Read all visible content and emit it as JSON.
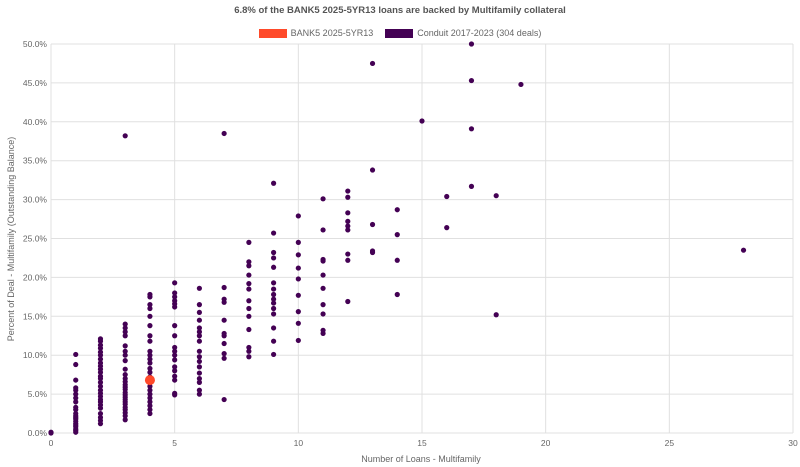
{
  "chart_data": {
    "type": "scatter",
    "title": "6.8% of the BANK5 2025-5YR13 loans are backed by Multifamily collateral",
    "xlabel": "Number of Loans - Multifamily",
    "ylabel": "Percent of Deal - Multifamily (Outstanding Balance)",
    "xlim": [
      0,
      30
    ],
    "ylim": [
      0,
      50
    ],
    "x_ticks": [
      "0",
      "5",
      "10",
      "15",
      "20",
      "25",
      "30"
    ],
    "y_ticks": [
      "0.0%",
      "5.0%",
      "10.0%",
      "15.0%",
      "20.0%",
      "25.0%",
      "30.0%",
      "35.0%",
      "40.0%",
      "45.0%",
      "50.0%"
    ],
    "grid": true,
    "legend_position": "top-center",
    "series": [
      {
        "name": "BANK5 2025-5YR13",
        "color": "#ff4a2a",
        "points": [
          [
            4,
            6.8
          ]
        ]
      },
      {
        "name": "Conduit 2017-2023 (304 deals)",
        "color": "#440154",
        "points": [
          [
            0,
            0
          ],
          [
            0,
            0.1
          ],
          [
            1,
            0.1
          ],
          [
            1,
            0.3
          ],
          [
            1,
            0.5
          ],
          [
            1,
            0.8
          ],
          [
            1,
            1.0
          ],
          [
            1,
            1.2
          ],
          [
            1,
            1.5
          ],
          [
            1,
            1.8
          ],
          [
            1,
            2.0
          ],
          [
            1,
            2.2
          ],
          [
            1,
            2.5
          ],
          [
            1,
            3.0
          ],
          [
            1,
            3.3
          ],
          [
            1,
            4.0
          ],
          [
            1,
            4.5
          ],
          [
            1,
            5.0
          ],
          [
            1,
            5.5
          ],
          [
            1,
            5.8
          ],
          [
            1,
            6.8
          ],
          [
            1,
            8.8
          ],
          [
            1,
            10.1
          ],
          [
            2,
            1.2
          ],
          [
            2,
            1.6
          ],
          [
            2,
            2.0
          ],
          [
            2,
            2.5
          ],
          [
            2,
            3.2
          ],
          [
            2,
            3.6
          ],
          [
            2,
            4.0
          ],
          [
            2,
            4.3
          ],
          [
            2,
            4.7
          ],
          [
            2,
            5.1
          ],
          [
            2,
            5.5
          ],
          [
            2,
            6.0
          ],
          [
            2,
            6.5
          ],
          [
            2,
            7.0
          ],
          [
            2,
            7.3
          ],
          [
            2,
            7.8
          ],
          [
            2,
            8.2
          ],
          [
            2,
            8.6
          ],
          [
            2,
            9.0
          ],
          [
            2,
            9.5
          ],
          [
            2,
            10.0
          ],
          [
            2,
            10.4
          ],
          [
            2,
            10.9
          ],
          [
            2,
            11.3
          ],
          [
            2,
            11.8
          ],
          [
            2,
            12.1
          ],
          [
            3,
            1.7
          ],
          [
            3,
            2.2
          ],
          [
            3,
            2.6
          ],
          [
            3,
            3.0
          ],
          [
            3,
            3.3
          ],
          [
            3,
            3.7
          ],
          [
            3,
            4.0
          ],
          [
            3,
            4.3
          ],
          [
            3,
            4.6
          ],
          [
            3,
            4.9
          ],
          [
            3,
            5.2
          ],
          [
            3,
            5.6
          ],
          [
            3,
            5.9
          ],
          [
            3,
            6.2
          ],
          [
            3,
            6.6
          ],
          [
            3,
            7.0
          ],
          [
            3,
            7.5
          ],
          [
            3,
            8.2
          ],
          [
            3,
            9.3
          ],
          [
            3,
            10.0
          ],
          [
            3,
            10.5
          ],
          [
            3,
            11.2
          ],
          [
            3,
            12.5
          ],
          [
            3,
            13.0
          ],
          [
            3,
            13.5
          ],
          [
            3,
            14.0
          ],
          [
            3,
            38.2
          ],
          [
            4,
            2.5
          ],
          [
            4,
            3.0
          ],
          [
            4,
            3.5
          ],
          [
            4,
            4.0
          ],
          [
            4,
            4.5
          ],
          [
            4,
            5.0
          ],
          [
            4,
            5.5
          ],
          [
            4,
            6.0
          ],
          [
            4,
            6.5
          ],
          [
            4,
            7.2
          ],
          [
            4,
            7.8
          ],
          [
            4,
            8.3
          ],
          [
            4,
            9.0
          ],
          [
            4,
            9.5
          ],
          [
            4,
            10.0
          ],
          [
            4,
            10.5
          ],
          [
            4,
            11.8
          ],
          [
            4,
            12.5
          ],
          [
            4,
            13.8
          ],
          [
            4,
            15.0
          ],
          [
            4,
            16.0
          ],
          [
            4,
            16.5
          ],
          [
            4,
            17.5
          ],
          [
            4,
            17.8
          ],
          [
            5,
            4.9
          ],
          [
            5,
            5.1
          ],
          [
            5,
            6.8
          ],
          [
            5,
            7.3
          ],
          [
            5,
            8.0
          ],
          [
            5,
            8.5
          ],
          [
            5,
            9.4
          ],
          [
            5,
            10.0
          ],
          [
            5,
            10.5
          ],
          [
            5,
            11.0
          ],
          [
            5,
            12.5
          ],
          [
            5,
            13.8
          ],
          [
            5,
            16.2
          ],
          [
            5,
            16.6
          ],
          [
            5,
            17.0
          ],
          [
            5,
            17.5
          ],
          [
            5,
            18.0
          ],
          [
            5,
            19.3
          ],
          [
            6,
            5.0
          ],
          [
            6,
            5.5
          ],
          [
            6,
            6.5
          ],
          [
            6,
            7.0
          ],
          [
            6,
            7.7
          ],
          [
            6,
            8.5
          ],
          [
            6,
            9.2
          ],
          [
            6,
            9.8
          ],
          [
            6,
            10.5
          ],
          [
            6,
            11.8
          ],
          [
            6,
            12.5
          ],
          [
            6,
            13.0
          ],
          [
            6,
            13.5
          ],
          [
            6,
            14.5
          ],
          [
            6,
            15.5
          ],
          [
            6,
            16.5
          ],
          [
            6,
            18.6
          ],
          [
            7,
            4.3
          ],
          [
            7,
            9.6
          ],
          [
            7,
            10.2
          ],
          [
            7,
            11.5
          ],
          [
            7,
            12.5
          ],
          [
            7,
            12.8
          ],
          [
            7,
            14.5
          ],
          [
            7,
            16.8
          ],
          [
            7,
            17.2
          ],
          [
            7,
            18.7
          ],
          [
            7,
            38.5
          ],
          [
            8,
            9.8
          ],
          [
            8,
            10.5
          ],
          [
            8,
            11.0
          ],
          [
            8,
            13.3
          ],
          [
            8,
            15.0
          ],
          [
            8,
            16.0
          ],
          [
            8,
            17.0
          ],
          [
            8,
            18.5
          ],
          [
            8,
            19.2
          ],
          [
            8,
            20.3
          ],
          [
            8,
            21.5
          ],
          [
            8,
            22.0
          ],
          [
            8,
            24.5
          ],
          [
            9,
            10.1
          ],
          [
            9,
            11.8
          ],
          [
            9,
            13.5
          ],
          [
            9,
            15.3
          ],
          [
            9,
            16.0
          ],
          [
            9,
            16.7
          ],
          [
            9,
            17.2
          ],
          [
            9,
            17.8
          ],
          [
            9,
            18.5
          ],
          [
            9,
            19.3
          ],
          [
            9,
            21.3
          ],
          [
            9,
            22.5
          ],
          [
            9,
            23.2
          ],
          [
            9,
            25.7
          ],
          [
            9,
            32.1
          ],
          [
            10,
            11.9
          ],
          [
            10,
            14.1
          ],
          [
            10,
            15.6
          ],
          [
            10,
            17.7
          ],
          [
            10,
            19.8
          ],
          [
            10,
            21.2
          ],
          [
            10,
            22.9
          ],
          [
            10,
            24.5
          ],
          [
            10,
            27.9
          ],
          [
            11,
            12.8
          ],
          [
            11,
            13.2
          ],
          [
            11,
            15.3
          ],
          [
            11,
            16.5
          ],
          [
            11,
            18.6
          ],
          [
            11,
            20.3
          ],
          [
            11,
            22.1
          ],
          [
            11,
            22.3
          ],
          [
            11,
            26.1
          ],
          [
            11,
            30.1
          ],
          [
            12,
            16.9
          ],
          [
            12,
            22.2
          ],
          [
            12,
            23.0
          ],
          [
            12,
            26.1
          ],
          [
            12,
            26.6
          ],
          [
            12,
            27.2
          ],
          [
            12,
            28.3
          ],
          [
            12,
            30.3
          ],
          [
            12,
            31.1
          ],
          [
            13,
            23.2
          ],
          [
            13,
            23.4
          ],
          [
            13,
            26.8
          ],
          [
            13,
            33.8
          ],
          [
            13,
            47.5
          ],
          [
            14,
            17.8
          ],
          [
            14,
            22.2
          ],
          [
            14,
            25.5
          ],
          [
            14,
            28.7
          ],
          [
            15,
            40.1
          ],
          [
            16,
            26.4
          ],
          [
            16,
            30.4
          ],
          [
            17,
            31.7
          ],
          [
            17,
            39.1
          ],
          [
            17,
            45.3
          ],
          [
            17,
            50.0
          ],
          [
            18,
            15.2
          ],
          [
            18,
            30.5
          ],
          [
            19,
            44.8
          ],
          [
            28,
            23.5
          ]
        ]
      }
    ]
  }
}
